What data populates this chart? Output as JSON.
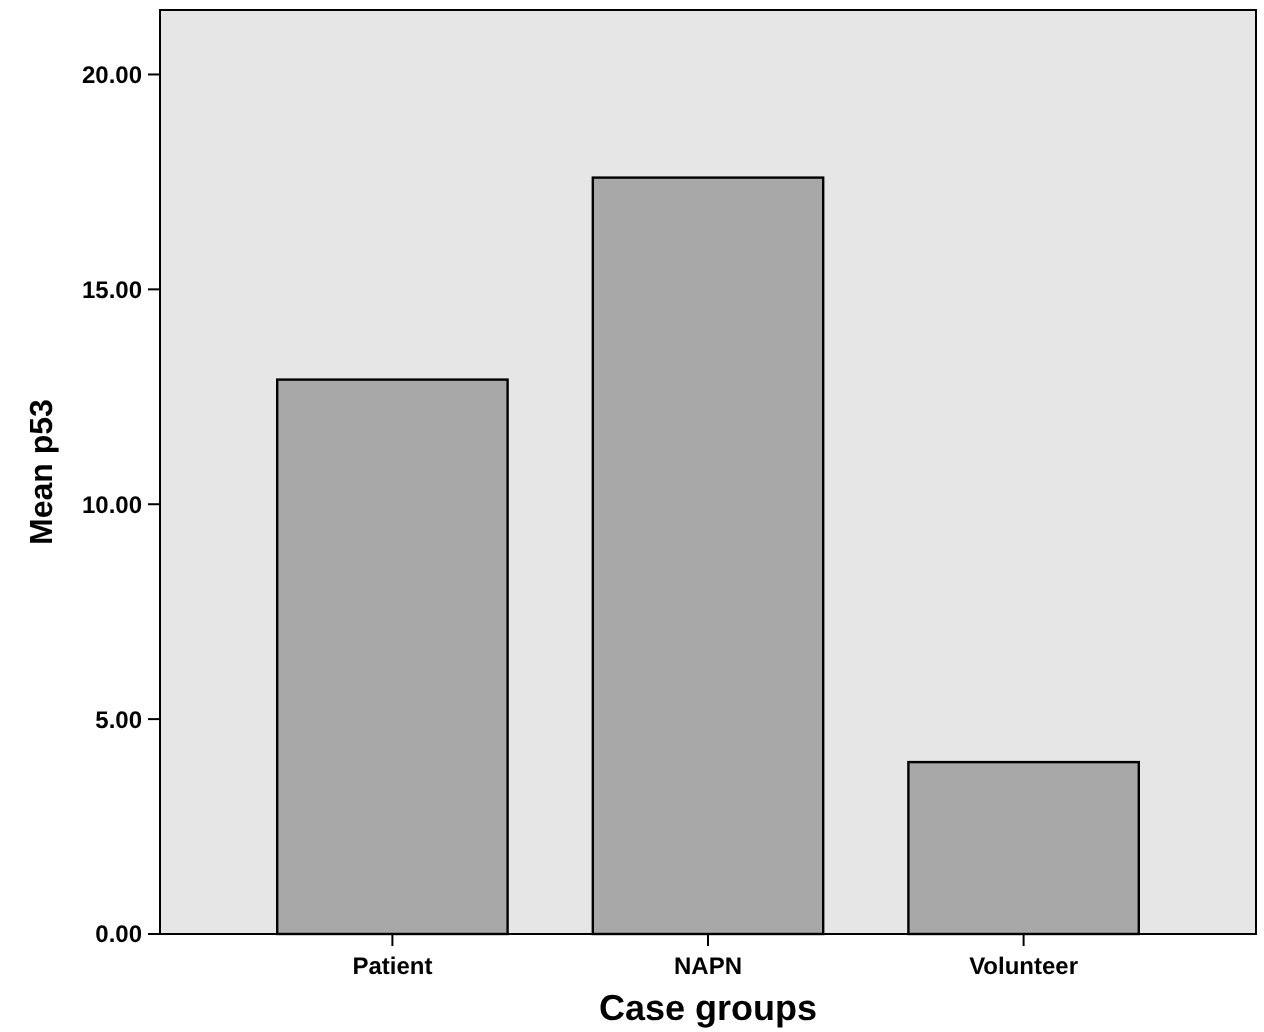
{
  "chart_data": {
    "type": "bar",
    "xlabel": "Case groups",
    "ylabel": "Mean p53",
    "categories": [
      "Patient",
      "NAPN",
      "Volunteer"
    ],
    "values": [
      12.9,
      17.6,
      4.0
    ],
    "color": "#a8a8a8",
    "ylim": [
      0,
      21.5
    ],
    "yticks": [
      {
        "value": 0,
        "label": "0.00"
      },
      {
        "value": 5,
        "label": "5.00"
      },
      {
        "value": 10,
        "label": "10.00"
      },
      {
        "value": 15,
        "label": "15.00"
      },
      {
        "value": 20,
        "label": "20.00"
      }
    ],
    "grid": false
  }
}
